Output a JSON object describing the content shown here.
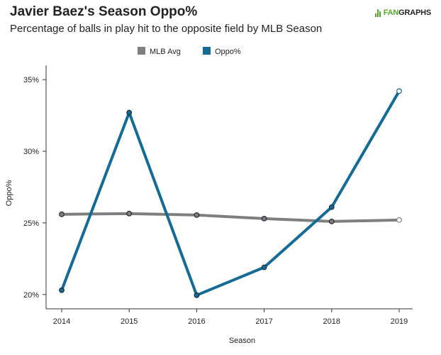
{
  "header": {
    "title": "Javier Baez's Season Oppo%",
    "subtitle": "Percentage of balls in play hit to the opposite field by MLB Season",
    "logo_part1": "FAN",
    "logo_part2": "GRAPHS"
  },
  "colors": {
    "mlb_avg": "#7f7f7f",
    "oppo": "#156b97",
    "axis": "#333333",
    "marker_edge": "#1f2b33"
  },
  "chart_data": {
    "type": "line",
    "title": "Javier Baez's Season Oppo%",
    "subtitle": "Percentage of balls in play hit to the opposite field by MLB Season",
    "xlabel": "Season",
    "ylabel": "Oppo%",
    "x": [
      "2014",
      "2015",
      "2016",
      "2017",
      "2018",
      "2019"
    ],
    "series": [
      {
        "name": "MLB Avg",
        "values": [
          25.6,
          25.65,
          25.55,
          25.3,
          25.1,
          25.2
        ]
      },
      {
        "name": "Oppo%",
        "values": [
          20.3,
          32.7,
          19.95,
          21.9,
          26.1,
          34.2
        ]
      }
    ],
    "ylim": [
      19,
      36
    ],
    "yticks": [
      20,
      25,
      30,
      35
    ],
    "ytick_labels": [
      "20%",
      "25%",
      "30%",
      "35%"
    ],
    "legend_position": "top-center",
    "grid": false
  }
}
